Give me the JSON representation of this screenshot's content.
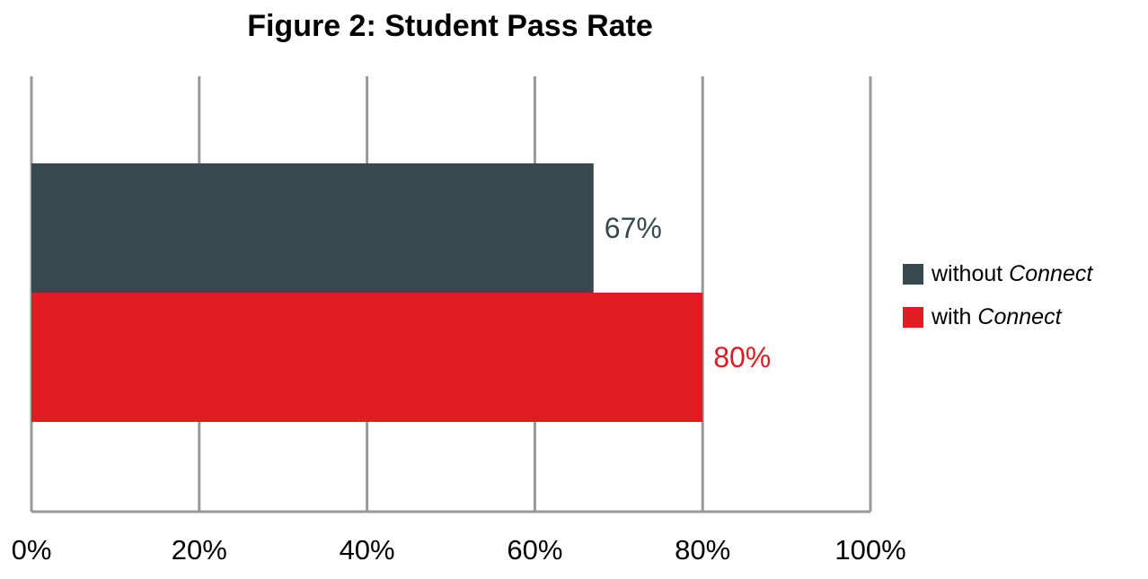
{
  "chart_data": {
    "type": "bar",
    "orientation": "horizontal",
    "title": "Figure 2: Student Pass Rate",
    "xlim": [
      0,
      100
    ],
    "x_ticks": [
      "0%",
      "20%",
      "40%",
      "60%",
      "80%",
      "100%"
    ],
    "grid": true,
    "legend_position": "right",
    "series": [
      {
        "name": "without Connect",
        "name_plain": "without ",
        "name_italic": "Connect",
        "value": 67,
        "data_label": "67%",
        "color": "#36494e"
      },
      {
        "name": "with Connect",
        "name_plain": "with ",
        "name_italic": "Connect",
        "value": 80,
        "data_label": "80%",
        "color": "#e01c23"
      }
    ],
    "gridline_color": "#999999"
  }
}
